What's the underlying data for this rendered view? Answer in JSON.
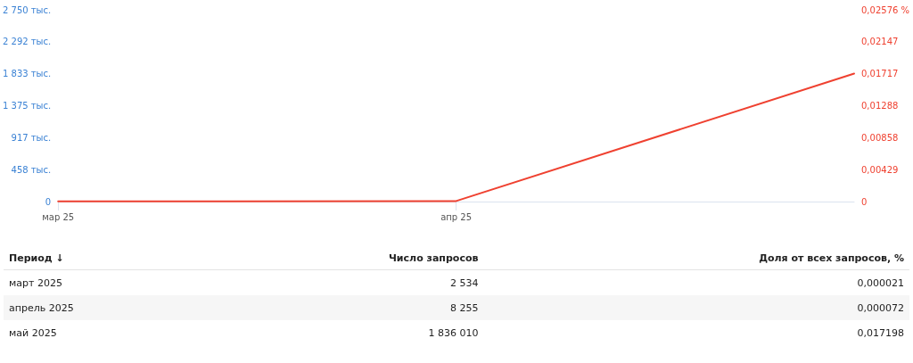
{
  "chart_data": {
    "type": "line",
    "categories": [
      "мар 25",
      "апр 25",
      null
    ],
    "series": [
      {
        "color": "#ef4130",
        "axis": "y2",
        "values": [
          2.1e-05,
          7.2e-05,
          0.017198
        ]
      }
    ],
    "ylim": [
      0,
      2750
    ],
    "yticks": [
      0,
      {
        "value": 458,
        "label": "458 тыс."
      },
      {
        "value": 917,
        "label": "917 тыс."
      },
      {
        "value": 1375,
        "label": "1 375 тыс."
      },
      {
        "value": 1833,
        "label": "1 833 тыс."
      },
      {
        "value": 2292,
        "label": "2 292 тыс."
      },
      {
        "value": 2750,
        "label": "2 750 тыс."
      }
    ],
    "y2lim": [
      0,
      0.02576
    ],
    "y2ticks": [
      0,
      {
        "value": 0.00429,
        "label": "0,00429"
      },
      {
        "value": 0.00858,
        "label": "0,00858"
      },
      {
        "value": 0.01288,
        "label": "0,01288"
      },
      {
        "value": 0.01717,
        "label": "0,01717"
      },
      {
        "value": 0.02147,
        "label": "0,02147"
      },
      {
        "value": 0.02576,
        "label": "0,02576 %"
      }
    ],
    "annotations": [
      "Период ↓",
      "Число запросов",
      "Доля от всех запросов, %",
      "март 2025",
      "2 534",
      "0,000021",
      "апрель 2025",
      "8 255",
      "0,000072",
      "май 2025",
      "1 836 010",
      "0,017198"
    ],
    "grid": false,
    "marker": "none",
    "line_style": "solid"
  }
}
